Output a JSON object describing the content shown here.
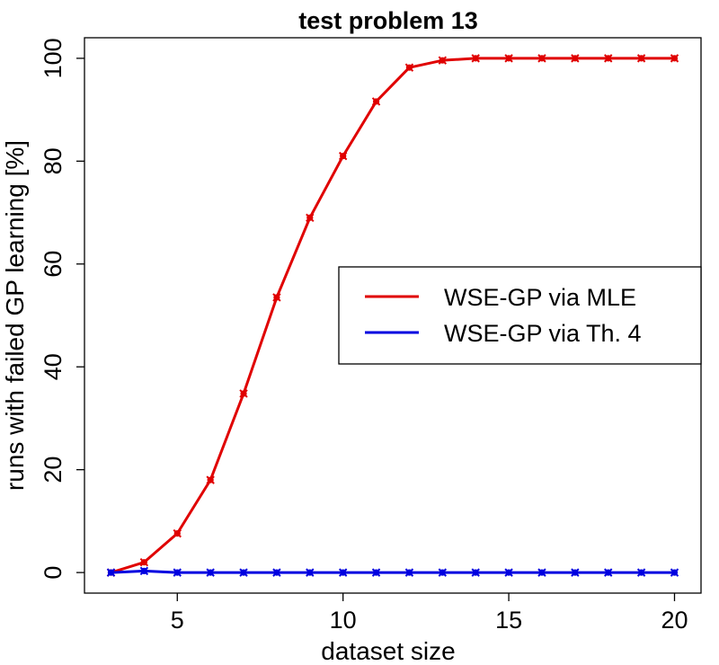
{
  "chart_data": {
    "type": "line",
    "title": "test problem 13",
    "xlabel": "dataset size",
    "ylabel": "runs with failed GP learning [%]",
    "xlim": [
      2.2,
      20.8
    ],
    "ylim": [
      -4,
      104
    ],
    "xticks": [
      5,
      10,
      15,
      20
    ],
    "yticks": [
      0,
      20,
      40,
      60,
      80,
      100
    ],
    "grid": false,
    "legend_position": "right",
    "x": [
      3,
      4,
      5,
      6,
      7,
      8,
      9,
      10,
      11,
      12,
      13,
      14,
      15,
      16,
      17,
      18,
      19,
      20
    ],
    "series": [
      {
        "name": "WSE-GP via MLE",
        "color": "#e00000",
        "values": [
          0,
          2,
          7.6,
          18,
          34.8,
          53.5,
          69,
          81,
          91.6,
          98.2,
          99.6,
          100,
          100,
          100,
          100,
          100,
          100,
          100
        ]
      },
      {
        "name": "WSE-GP via Th. 4",
        "color": "#0000e0",
        "values": [
          0,
          0.3,
          0,
          0,
          0,
          0,
          0,
          0,
          0,
          0,
          0,
          0,
          0,
          0,
          0,
          0,
          0,
          0
        ]
      }
    ]
  }
}
